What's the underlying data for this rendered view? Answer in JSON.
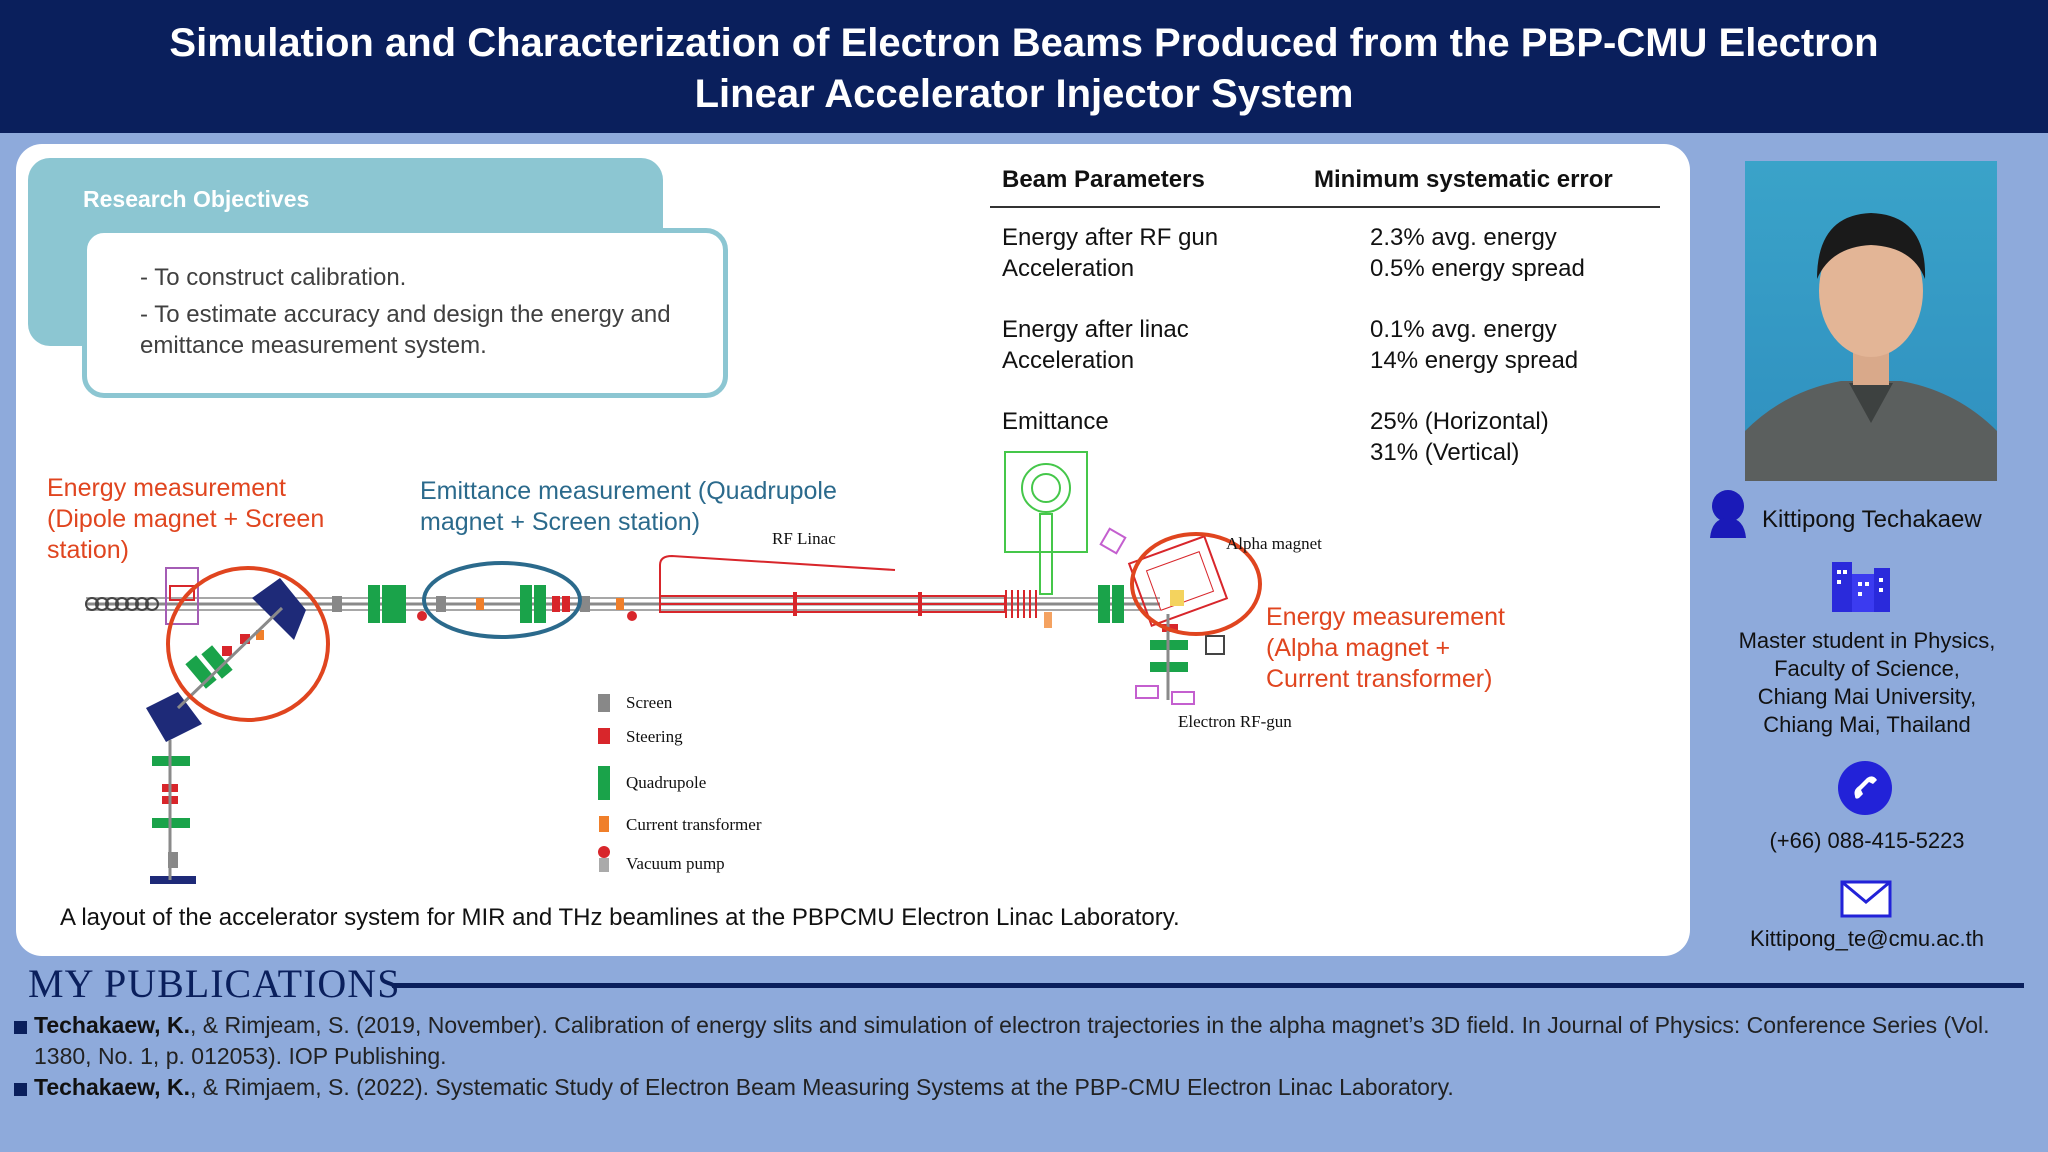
{
  "header": {
    "title_line1": "Simulation and Characterization of Electron Beams Produced from the PBP-CMU Electron",
    "title_line2": "Linear Accelerator Injector System"
  },
  "objectives": {
    "title": "Research Objectives",
    "items": [
      "- To construct calibration.",
      "- To estimate accuracy and design the energy and emittance measurement system."
    ]
  },
  "beam_table": {
    "headers": [
      "Beam Parameters",
      "Minimum systematic error"
    ],
    "rows": [
      {
        "param_l1": "Energy after RF gun",
        "param_l2": "Acceleration",
        "err_l1": "2.3% avg. energy",
        "err_l2": "0.5% energy spread"
      },
      {
        "param_l1": "Energy after linac",
        "param_l2": "Acceleration",
        "err_l1": "0.1% avg. energy",
        "err_l2": "14% energy spread"
      },
      {
        "param_l1": "Emittance",
        "param_l2": "",
        "err_l1": "25% (Horizontal)",
        "err_l2": "31% (Vertical)"
      }
    ]
  },
  "diagram": {
    "energy_dipole": [
      "Energy measurement",
      "(Dipole magnet + Screen",
      "station)"
    ],
    "emittance": [
      "Emittance measurement (Quadrupole",
      "magnet + Screen station)"
    ],
    "energy_alpha": [
      "Energy measurement",
      "(Alpha magnet +",
      "Current transformer)"
    ],
    "rf_linac": "RF Linac",
    "alpha_magnet": "Alpha magnet",
    "electron_rf_gun": "Electron RF-gun",
    "legend": [
      "Screen",
      "Steering",
      "Quadrupole",
      "Current transformer",
      "Vacuum pump"
    ],
    "caption": "A layout of the accelerator system for MIR and THz beamlines at the PBPCMU Electron Linac Laboratory."
  },
  "contact": {
    "name": "Kittipong Techakaew",
    "affiliation": [
      "Master student in Physics,",
      "Faculty of Science,",
      "Chiang Mai University,",
      "Chiang Mai, Thailand"
    ],
    "phone": "(+66) 088-415-5223",
    "email": "Kittipong_te@cmu.ac.th"
  },
  "publications": {
    "title": "MY PUBLICATIONS",
    "items": [
      {
        "author": "Techakaew, K.",
        "rest": ", & Rimjeam, S. (2019, November). Calibration of energy slits and simulation of electron trajectories in the alpha magnet’s 3D field. In Journal of Physics: Conference Series (Vol. 1380, No. 1, p. 012053). IOP Publishing."
      },
      {
        "author": "Techakaew, K.",
        "rest": ", & Rimjaem, S. (2022). Systematic Study of Electron Beam Measuring Systems at the PBP-CMU Electron Linac Laboratory."
      }
    ]
  },
  "colors": {
    "navy": "#0a1f5c",
    "background": "#8eaadb",
    "teal": "#8cc6d2",
    "highlight_red": "#e0451f",
    "quadrupole_green": "#1aa34a",
    "steering_red": "#d8262b"
  }
}
